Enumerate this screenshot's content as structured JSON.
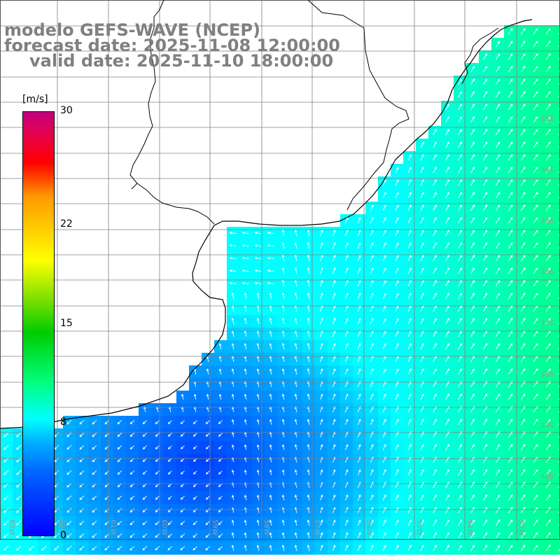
{
  "title": {
    "model": "modelo GEFS-WAVE (NCEP)",
    "forecast": "forecast date: 2025-11-08 12:00:00",
    "valid": "valid date: 2025-11-10 18:00:00"
  },
  "colorbar": {
    "units": "[m/s]",
    "ticks": [
      {
        "label": "30",
        "value": 30
      },
      {
        "label": "22",
        "value": 22
      },
      {
        "label": "15",
        "value": 15
      },
      {
        "label": "8",
        "value": 8
      },
      {
        "label": "0",
        "value": 0
      }
    ],
    "range": [
      0,
      30
    ],
    "colors": [
      "#0000ff",
      "#00b0ff",
      "#00ffff",
      "#00cc00",
      "#ffff00",
      "#ff9900",
      "#ff0000",
      "#c0007f"
    ]
  },
  "latitude_labels": [
    "33S",
    "34S",
    "35S",
    "36S",
    "37S",
    "38S",
    "39S",
    "40S"
  ],
  "longitude_labels": [
    "63W",
    "62W",
    "61W",
    "60W",
    "59W",
    "58W",
    "57W",
    "56W",
    "55W",
    "54W",
    "53W"
  ],
  "colors": {
    "land": "#ffffff",
    "coast": "#000000",
    "grid": "#808080",
    "arrow": "#ffffff",
    "title_text": "#808080"
  }
}
